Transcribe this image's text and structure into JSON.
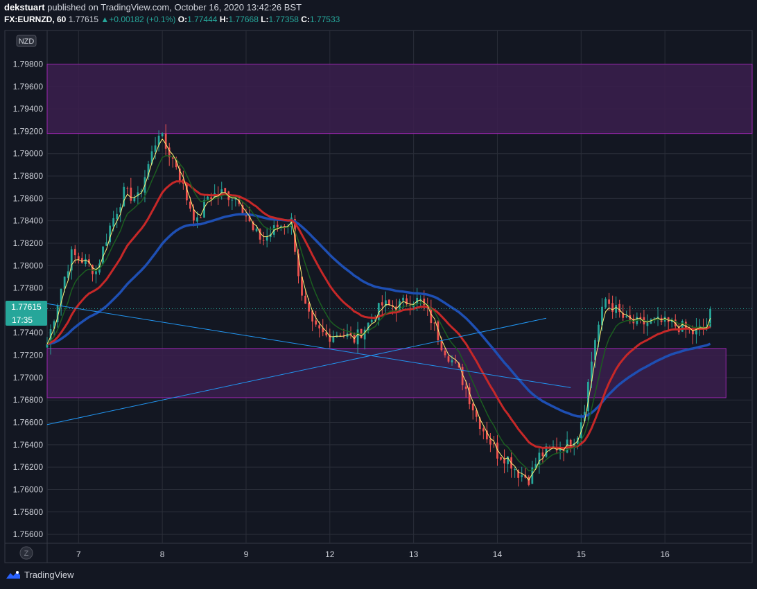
{
  "header": {
    "author": "dekstuart",
    "published": "published on TradingView.com, October 16, 2020 13:42:26 BST",
    "symbol": "FX:EURNZD, 60",
    "last": "1.77615",
    "change": "+0.00182 (+0.1%)",
    "o_label": "O:",
    "o_value": "1.77444",
    "h_label": "H:",
    "h_value": "1.77668",
    "l_label": "L:",
    "l_value": "1.77358",
    "c_label": "C:",
    "c_value": "1.77533"
  },
  "currency_badge": "NZD",
  "price_tag": {
    "value": "1.77615",
    "countdown": "17:35"
  },
  "z_button": "Z",
  "footer": {
    "brand": "TradingView"
  },
  "colors": {
    "background": "#131722",
    "grid": "#2a2e39",
    "up": "#26a69a",
    "down": "#ef5350",
    "zone_fill": "#3b1f4d",
    "zone_stroke": "#9c27b0",
    "trendline": "#2196f3",
    "ma_fast": "#fff176",
    "ma_mid": "#1b5e20",
    "ma_slow": "#c62828",
    "ma_long": "#1e4fb3"
  },
  "chart_data": {
    "type": "candlestick",
    "y_ticks": [
      "1.75600",
      "1.75800",
      "1.76000",
      "1.76200",
      "1.76400",
      "1.76600",
      "1.76800",
      "1.77000",
      "1.77200",
      "1.77400",
      "1.77600",
      "1.77800",
      "1.78000",
      "1.78200",
      "1.78400",
      "1.78600",
      "1.78800",
      "1.79000",
      "1.79200",
      "1.79400",
      "1.79600",
      "1.79800"
    ],
    "ylim": [
      1.7552,
      1.801
    ],
    "x_ticks": [
      {
        "label": "7",
        "t": 9
      },
      {
        "label": "8",
        "t": 33
      },
      {
        "label": "9",
        "t": 57
      },
      {
        "label": "12",
        "t": 81
      },
      {
        "label": "13",
        "t": 105
      },
      {
        "label": "14",
        "t": 129
      },
      {
        "label": "15",
        "t": 153
      },
      {
        "label": "16",
        "t": 177
      }
    ],
    "xlim": [
      0,
      202
    ],
    "zones": [
      {
        "y1": 1.7918,
        "y2": 1.798,
        "t_end": 202
      },
      {
        "y1": 1.7682,
        "y2": 1.7726,
        "t_end": 194.5
      }
    ],
    "trendlines": [
      {
        "p1": [
          0,
          1.7766
        ],
        "p2": [
          150,
          1.7691
        ]
      },
      {
        "p1": [
          0,
          1.7658
        ],
        "p2": [
          143,
          1.7753
        ]
      }
    ],
    "anchors": [
      [
        0,
        1.773
      ],
      [
        4,
        1.778
      ],
      [
        7,
        1.781
      ],
      [
        10,
        1.7805
      ],
      [
        14,
        1.7795
      ],
      [
        18,
        1.7835
      ],
      [
        22,
        1.7865
      ],
      [
        26,
        1.786
      ],
      [
        29,
        1.789
      ],
      [
        32,
        1.792
      ],
      [
        34,
        1.7905
      ],
      [
        37,
        1.789
      ],
      [
        40,
        1.786
      ],
      [
        43,
        1.7838
      ],
      [
        46,
        1.7862
      ],
      [
        50,
        1.7865
      ],
      [
        55,
        1.786
      ],
      [
        59,
        1.783
      ],
      [
        62,
        1.7823
      ],
      [
        66,
        1.7835
      ],
      [
        70,
        1.784
      ],
      [
        73,
        1.777
      ],
      [
        76,
        1.7745
      ],
      [
        80,
        1.7737
      ],
      [
        84,
        1.774
      ],
      [
        88,
        1.7734
      ],
      [
        92,
        1.7748
      ],
      [
        96,
        1.7765
      ],
      [
        100,
        1.7763
      ],
      [
        104,
        1.777
      ],
      [
        107,
        1.7768
      ],
      [
        110,
        1.7752
      ],
      [
        113,
        1.773
      ],
      [
        116,
        1.7715
      ],
      [
        118,
        1.7705
      ],
      [
        120,
        1.769
      ],
      [
        123,
        1.7665
      ],
      [
        126,
        1.7648
      ],
      [
        129,
        1.7632
      ],
      [
        132,
        1.7628
      ],
      [
        135,
        1.7615
      ],
      [
        138,
        1.761
      ],
      [
        141,
        1.763
      ],
      [
        145,
        1.7637
      ],
      [
        149,
        1.764
      ],
      [
        152,
        1.765
      ],
      [
        154,
        1.7675
      ],
      [
        157,
        1.7735
      ],
      [
        160,
        1.777
      ],
      [
        163,
        1.776
      ],
      [
        166,
        1.775
      ],
      [
        170,
        1.7748
      ],
      [
        174,
        1.775
      ],
      [
        178,
        1.7748
      ],
      [
        182,
        1.7745
      ],
      [
        185,
        1.774
      ],
      [
        188,
        1.7744
      ],
      [
        190,
        1.7747
      ]
    ],
    "ma_lengths": {
      "fast": 3,
      "mid": 8,
      "slow": 20,
      "long": 48
    },
    "last_price": 1.77615
  }
}
